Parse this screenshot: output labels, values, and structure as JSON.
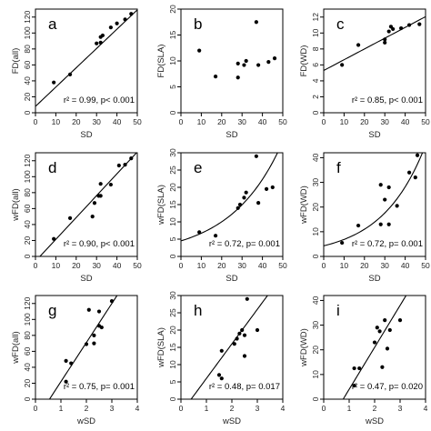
{
  "chart_data": [
    {
      "type": "scatter",
      "label": "a",
      "xlabel": "SD",
      "ylabel": "FD(all)",
      "stat": "r² = 0.99, p< 0.001",
      "xlim": [
        0,
        50
      ],
      "ylim": [
        0,
        130
      ],
      "xticks": [
        0,
        10,
        20,
        30,
        40,
        50
      ],
      "yticks": [
        0,
        20,
        40,
        60,
        80,
        100,
        120
      ],
      "fit": {
        "kind": "linear",
        "a": 8,
        "b": 2.42
      },
      "points": [
        [
          9,
          38
        ],
        [
          17,
          48
        ],
        [
          30,
          87
        ],
        [
          32,
          88
        ],
        [
          32,
          95
        ],
        [
          33,
          97
        ],
        [
          37,
          107
        ],
        [
          40,
          112
        ],
        [
          44,
          117
        ],
        [
          47,
          124
        ]
      ]
    },
    {
      "type": "scatter",
      "label": "b",
      "xlabel": "SD",
      "ylabel": "FD(SLA)",
      "stat": "",
      "xlim": [
        0,
        50
      ],
      "ylim": [
        0,
        20
      ],
      "xticks": [
        0,
        10,
        20,
        30,
        40,
        50
      ],
      "yticks": [
        0,
        5,
        10,
        15,
        20
      ],
      "fit": null,
      "points": [
        [
          9,
          12
        ],
        [
          17,
          7
        ],
        [
          28,
          6.8
        ],
        [
          28,
          9.5
        ],
        [
          31,
          9.2
        ],
        [
          32,
          10
        ],
        [
          37,
          17.5
        ],
        [
          38,
          9.2
        ],
        [
          43,
          9.8
        ],
        [
          46,
          10.5
        ]
      ]
    },
    {
      "type": "scatter",
      "label": "c",
      "xlabel": "SD",
      "ylabel": "FD(WD)",
      "stat": "r² = 0.85, p< 0.001",
      "xlim": [
        0,
        50
      ],
      "ylim": [
        0,
        13
      ],
      "xticks": [
        0,
        10,
        20,
        30,
        40,
        50
      ],
      "yticks": [
        0,
        2,
        4,
        6,
        8,
        10,
        12
      ],
      "fit": {
        "kind": "linear",
        "a": 5.3,
        "b": 0.135
      },
      "points": [
        [
          9,
          6
        ],
        [
          17,
          8.5
        ],
        [
          30,
          8.8
        ],
        [
          30,
          9.2
        ],
        [
          32,
          10.2
        ],
        [
          33,
          10.8
        ],
        [
          34,
          10.5
        ],
        [
          38,
          10.6
        ],
        [
          42,
          11
        ],
        [
          47,
          11.1
        ]
      ]
    },
    {
      "type": "scatter",
      "label": "d",
      "xlabel": "SD",
      "ylabel": "wFD(all)",
      "stat": "r² = 0.90, p< 0.001",
      "xlim": [
        0,
        50
      ],
      "ylim": [
        0,
        130
      ],
      "xticks": [
        0,
        10,
        20,
        30,
        40,
        50
      ],
      "yticks": [
        0,
        20,
        40,
        60,
        80,
        100,
        120
      ],
      "fit": {
        "kind": "linear",
        "a": -6,
        "b": 2.74
      },
      "points": [
        [
          9,
          22
        ],
        [
          17,
          48
        ],
        [
          28,
          50
        ],
        [
          29,
          67
        ],
        [
          31,
          76
        ],
        [
          32,
          76
        ],
        [
          32,
          91
        ],
        [
          37,
          90
        ],
        [
          41,
          114
        ],
        [
          44,
          115
        ],
        [
          47,
          123
        ]
      ]
    },
    {
      "type": "scatter",
      "label": "e",
      "xlabel": "SD",
      "ylabel": "wFD(SLA)",
      "stat": "r² = 0.72, p= 0.001",
      "xlim": [
        0,
        50
      ],
      "ylim": [
        0,
        30
      ],
      "xticks": [
        0,
        10,
        20,
        30,
        40,
        50
      ],
      "yticks": [
        0,
        5,
        10,
        15,
        20,
        25,
        30
      ],
      "fit": {
        "kind": "exp",
        "a": 4.5,
        "b": 0.04
      },
      "points": [
        [
          9,
          7
        ],
        [
          17,
          6
        ],
        [
          28,
          14
        ],
        [
          29,
          15
        ],
        [
          31,
          17
        ],
        [
          32,
          18.5
        ],
        [
          37,
          29
        ],
        [
          38,
          15.5
        ],
        [
          42,
          19.5
        ],
        [
          45,
          20
        ]
      ]
    },
    {
      "type": "scatter",
      "label": "f",
      "xlabel": "SD",
      "ylabel": "wFD(WD)",
      "stat": "r² = 0.72, p= 0.001",
      "xlim": [
        0,
        50
      ],
      "ylim": [
        0,
        42
      ],
      "xticks": [
        0,
        10,
        20,
        30,
        40,
        50
      ],
      "yticks": [
        0,
        10,
        20,
        30,
        40
      ],
      "fit": {
        "kind": "exp",
        "a": 4.3,
        "b": 0.047
      },
      "points": [
        [
          9,
          5.5
        ],
        [
          17,
          12.5
        ],
        [
          28,
          13
        ],
        [
          28,
          29
        ],
        [
          30,
          23
        ],
        [
          32,
          28
        ],
        [
          32,
          13
        ],
        [
          36,
          20.5
        ],
        [
          42,
          34
        ],
        [
          45,
          32
        ],
        [
          46,
          41
        ]
      ]
    },
    {
      "type": "scatter",
      "label": "g",
      "xlabel": "wSD",
      "ylabel": "wFD(all)",
      "stat": "r² = 0.75, p= 0.001",
      "xlim": [
        0,
        4
      ],
      "ylim": [
        0,
        130
      ],
      "xticks": [
        0,
        1,
        2,
        3,
        4
      ],
      "yticks": [
        0,
        20,
        40,
        60,
        80,
        100,
        120
      ],
      "fit": {
        "kind": "linear",
        "a": -27,
        "b": 49
      },
      "points": [
        [
          1.2,
          22
        ],
        [
          1.2,
          48
        ],
        [
          1.4,
          45
        ],
        [
          2.0,
          69
        ],
        [
          2.1,
          112
        ],
        [
          2.3,
          80
        ],
        [
          2.3,
          70
        ],
        [
          2.5,
          110
        ],
        [
          2.5,
          92
        ],
        [
          2.6,
          90
        ],
        [
          3.0,
          123
        ]
      ]
    },
    {
      "type": "scatter",
      "label": "h",
      "xlabel": "wSD",
      "ylabel": "wFD(SLA)",
      "stat": "r² = 0.48, p= 0.017",
      "xlim": [
        0,
        4
      ],
      "ylim": [
        0,
        30
      ],
      "xticks": [
        0,
        1,
        2,
        3,
        4
      ],
      "yticks": [
        0,
        5,
        10,
        15,
        20,
        25,
        30
      ],
      "fit": {
        "kind": "linear",
        "a": -4,
        "b": 10
      },
      "points": [
        [
          1.5,
          7
        ],
        [
          1.6,
          6
        ],
        [
          1.6,
          14
        ],
        [
          2.1,
          16
        ],
        [
          2.2,
          17.5
        ],
        [
          2.3,
          19
        ],
        [
          2.4,
          20
        ],
        [
          2.5,
          12.5
        ],
        [
          2.5,
          18.5
        ],
        [
          2.6,
          29
        ],
        [
          3.0,
          20
        ]
      ]
    },
    {
      "type": "scatter",
      "label": "i",
      "xlabel": "wSD",
      "ylabel": "wFD(WD)",
      "stat": "r² = 0.47, p= 0.020",
      "xlim": [
        0,
        4
      ],
      "ylim": [
        0,
        42
      ],
      "xticks": [
        0,
        1,
        2,
        3,
        4
      ],
      "yticks": [
        0,
        10,
        20,
        30,
        40
      ],
      "fit": {
        "kind": "linear",
        "a": -13,
        "b": 17
      },
      "points": [
        [
          1.2,
          5.5
        ],
        [
          1.2,
          12.5
        ],
        [
          1.4,
          12.5
        ],
        [
          2.0,
          23
        ],
        [
          2.1,
          29
        ],
        [
          2.2,
          27.5
        ],
        [
          2.3,
          13
        ],
        [
          2.4,
          32
        ],
        [
          2.5,
          20.5
        ],
        [
          2.6,
          28
        ],
        [
          3.0,
          32
        ]
      ]
    }
  ]
}
